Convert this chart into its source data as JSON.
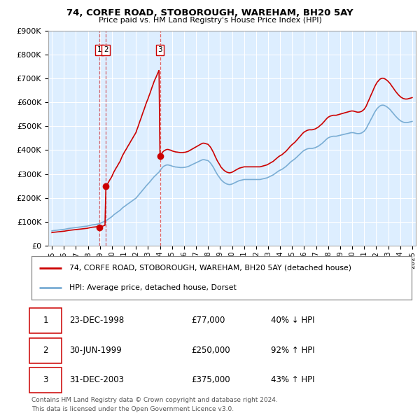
{
  "title1": "74, CORFE ROAD, STOBOROUGH, WAREHAM, BH20 5AY",
  "title2": "Price paid vs. HM Land Registry's House Price Index (HPI)",
  "legend_line1": "74, CORFE ROAD, STOBOROUGH, WAREHAM, BH20 5AY (detached house)",
  "legend_line2": "HPI: Average price, detached house, Dorset",
  "red_line_color": "#cc0000",
  "blue_line_color": "#7aadd4",
  "plot_bg_color": "#ddeeff",
  "purchase_dates": [
    1998.97,
    1999.5,
    2003.997
  ],
  "purchase_prices": [
    77000,
    250000,
    375000
  ],
  "purchase_labels_combined": [
    "1 2",
    "3"
  ],
  "purchase_label_dates": [
    1999.05,
    2004.0
  ],
  "footer1": "Contains HM Land Registry data © Crown copyright and database right 2024.",
  "footer2": "This data is licensed under the Open Government Licence v3.0.",
  "table_rows": [
    {
      "num": "1",
      "date": "23-DEC-1998",
      "price": "£77,000",
      "hpi": "40% ↓ HPI"
    },
    {
      "num": "2",
      "date": "30-JUN-1999",
      "price": "£250,000",
      "hpi": "92% ↑ HPI"
    },
    {
      "num": "3",
      "date": "31-DEC-2003",
      "price": "£375,000",
      "hpi": "43% ↑ HPI"
    }
  ],
  "ylim": [
    0,
    900000
  ],
  "xlim_start": 1994.7,
  "xlim_end": 2025.3,
  "hpi_x": [
    1995.0,
    1995.08,
    1995.17,
    1995.25,
    1995.33,
    1995.42,
    1995.5,
    1995.58,
    1995.67,
    1995.75,
    1995.83,
    1995.92,
    1996.0,
    1996.08,
    1996.17,
    1996.25,
    1996.33,
    1996.42,
    1996.5,
    1996.58,
    1996.67,
    1996.75,
    1996.83,
    1996.92,
    1997.0,
    1997.08,
    1997.17,
    1997.25,
    1997.33,
    1997.42,
    1997.5,
    1997.58,
    1997.67,
    1997.75,
    1997.83,
    1997.92,
    1998.0,
    1998.08,
    1998.17,
    1998.25,
    1998.33,
    1998.42,
    1998.5,
    1998.58,
    1998.67,
    1998.75,
    1998.83,
    1998.92,
    1999.0,
    1999.08,
    1999.17,
    1999.25,
    1999.33,
    1999.42,
    1999.5,
    1999.58,
    1999.67,
    1999.75,
    1999.83,
    1999.92,
    2000.0,
    2000.08,
    2000.17,
    2000.25,
    2000.33,
    2000.42,
    2000.5,
    2000.58,
    2000.67,
    2000.75,
    2000.83,
    2000.92,
    2001.0,
    2001.08,
    2001.17,
    2001.25,
    2001.33,
    2001.42,
    2001.5,
    2001.58,
    2001.67,
    2001.75,
    2001.83,
    2001.92,
    2002.0,
    2002.08,
    2002.17,
    2002.25,
    2002.33,
    2002.42,
    2002.5,
    2002.58,
    2002.67,
    2002.75,
    2002.83,
    2002.92,
    2003.0,
    2003.08,
    2003.17,
    2003.25,
    2003.33,
    2003.42,
    2003.5,
    2003.58,
    2003.67,
    2003.75,
    2003.83,
    2003.92,
    2004.0,
    2004.08,
    2004.17,
    2004.25,
    2004.33,
    2004.42,
    2004.5,
    2004.58,
    2004.67,
    2004.75,
    2004.83,
    2004.92,
    2005.0,
    2005.08,
    2005.17,
    2005.25,
    2005.33,
    2005.42,
    2005.5,
    2005.58,
    2005.67,
    2005.75,
    2005.83,
    2005.92,
    2006.0,
    2006.08,
    2006.17,
    2006.25,
    2006.33,
    2006.42,
    2006.5,
    2006.58,
    2006.67,
    2006.75,
    2006.83,
    2006.92,
    2007.0,
    2007.08,
    2007.17,
    2007.25,
    2007.33,
    2007.42,
    2007.5,
    2007.58,
    2007.67,
    2007.75,
    2007.83,
    2007.92,
    2008.0,
    2008.08,
    2008.17,
    2008.25,
    2008.33,
    2008.42,
    2008.5,
    2008.58,
    2008.67,
    2008.75,
    2008.83,
    2008.92,
    2009.0,
    2009.08,
    2009.17,
    2009.25,
    2009.33,
    2009.42,
    2009.5,
    2009.58,
    2009.67,
    2009.75,
    2009.83,
    2009.92,
    2010.0,
    2010.08,
    2010.17,
    2010.25,
    2010.33,
    2010.42,
    2010.5,
    2010.58,
    2010.67,
    2010.75,
    2010.83,
    2010.92,
    2011.0,
    2011.08,
    2011.17,
    2011.25,
    2011.33,
    2011.42,
    2011.5,
    2011.58,
    2011.67,
    2011.75,
    2011.83,
    2011.92,
    2012.0,
    2012.08,
    2012.17,
    2012.25,
    2012.33,
    2012.42,
    2012.5,
    2012.58,
    2012.67,
    2012.75,
    2012.83,
    2012.92,
    2013.0,
    2013.08,
    2013.17,
    2013.25,
    2013.33,
    2013.42,
    2013.5,
    2013.58,
    2013.67,
    2013.75,
    2013.83,
    2013.92,
    2014.0,
    2014.08,
    2014.17,
    2014.25,
    2014.33,
    2014.42,
    2014.5,
    2014.58,
    2014.67,
    2014.75,
    2014.83,
    2014.92,
    2015.0,
    2015.08,
    2015.17,
    2015.25,
    2015.33,
    2015.42,
    2015.5,
    2015.58,
    2015.67,
    2015.75,
    2015.83,
    2015.92,
    2016.0,
    2016.08,
    2016.17,
    2016.25,
    2016.33,
    2016.42,
    2016.5,
    2016.58,
    2016.67,
    2016.75,
    2016.83,
    2016.92,
    2017.0,
    2017.08,
    2017.17,
    2017.25,
    2017.33,
    2017.42,
    2017.5,
    2017.58,
    2017.67,
    2017.75,
    2017.83,
    2017.92,
    2018.0,
    2018.08,
    2018.17,
    2018.25,
    2018.33,
    2018.42,
    2018.5,
    2018.58,
    2018.67,
    2018.75,
    2018.83,
    2018.92,
    2019.0,
    2019.08,
    2019.17,
    2019.25,
    2019.33,
    2019.42,
    2019.5,
    2019.58,
    2019.67,
    2019.75,
    2019.83,
    2019.92,
    2020.0,
    2020.08,
    2020.17,
    2020.25,
    2020.33,
    2020.42,
    2020.5,
    2020.58,
    2020.67,
    2020.75,
    2020.83,
    2020.92,
    2021.0,
    2021.08,
    2021.17,
    2021.25,
    2021.33,
    2021.42,
    2021.5,
    2021.58,
    2021.67,
    2021.75,
    2021.83,
    2021.92,
    2022.0,
    2022.08,
    2022.17,
    2022.25,
    2022.33,
    2022.42,
    2022.5,
    2022.58,
    2022.67,
    2022.75,
    2022.83,
    2022.92,
    2023.0,
    2023.08,
    2023.17,
    2023.25,
    2023.33,
    2023.42,
    2023.5,
    2023.58,
    2023.67,
    2023.75,
    2023.83,
    2023.92,
    2024.0,
    2024.08,
    2024.17,
    2024.25,
    2024.33,
    2024.42,
    2024.5,
    2024.58,
    2024.67,
    2024.75,
    2024.83,
    2024.92,
    2025.0
  ],
  "hpi_y": [
    62000,
    63000,
    63500,
    64000,
    64500,
    65000,
    65500,
    66000,
    66500,
    67000,
    67500,
    68000,
    68500,
    69000,
    70000,
    71000,
    72000,
    72500,
    73000,
    73500,
    74000,
    74500,
    75000,
    75500,
    76000,
    76500,
    77000,
    77500,
    78000,
    78500,
    79000,
    79500,
    80000,
    80500,
    81000,
    82000,
    83000,
    84000,
    85000,
    86000,
    87000,
    87500,
    88000,
    88500,
    89000,
    90000,
    91000,
    92000,
    93000,
    95000,
    97000,
    99000,
    101000,
    103000,
    105000,
    107000,
    110000,
    113000,
    116000,
    119000,
    122000,
    126000,
    130000,
    133000,
    136000,
    139000,
    142000,
    145000,
    148000,
    152000,
    156000,
    160000,
    163000,
    166000,
    169000,
    172000,
    175000,
    178000,
    181000,
    184000,
    187000,
    190000,
    193000,
    196000,
    199000,
    204000,
    209000,
    214000,
    219000,
    224000,
    229000,
    234000,
    239000,
    244000,
    249000,
    254000,
    258000,
    263000,
    268000,
    273000,
    278000,
    283000,
    288000,
    292000,
    296000,
    300000,
    304000,
    308000,
    315000,
    320000,
    325000,
    330000,
    333000,
    335000,
    337000,
    338000,
    338000,
    337000,
    336000,
    335000,
    333000,
    332000,
    331000,
    330000,
    329000,
    329000,
    328000,
    328000,
    327000,
    327000,
    327000,
    327000,
    328000,
    328000,
    329000,
    330000,
    331000,
    333000,
    335000,
    337000,
    339000,
    341000,
    343000,
    345000,
    347000,
    349000,
    351000,
    353000,
    355000,
    357000,
    359000,
    360000,
    360000,
    359000,
    358000,
    357000,
    356000,
    352000,
    348000,
    343000,
    337000,
    330000,
    323000,
    315000,
    307000,
    300000,
    294000,
    288000,
    282000,
    276000,
    272000,
    268000,
    265000,
    262000,
    260000,
    258000,
    257000,
    256000,
    256000,
    257000,
    258000,
    260000,
    262000,
    264000,
    266000,
    268000,
    270000,
    272000,
    273000,
    274000,
    275000,
    276000,
    277000,
    277000,
    277000,
    277000,
    277000,
    277000,
    277000,
    277000,
    277000,
    277000,
    277000,
    277000,
    277000,
    277000,
    277000,
    277000,
    277000,
    278000,
    279000,
    280000,
    281000,
    282000,
    283000,
    284000,
    286000,
    288000,
    290000,
    292000,
    294000,
    296000,
    299000,
    302000,
    305000,
    308000,
    311000,
    314000,
    316000,
    318000,
    320000,
    323000,
    326000,
    329000,
    332000,
    336000,
    340000,
    344000,
    348000,
    352000,
    355000,
    358000,
    361000,
    364000,
    368000,
    372000,
    376000,
    380000,
    384000,
    388000,
    392000,
    396000,
    399000,
    401000,
    403000,
    405000,
    406000,
    407000,
    407000,
    407000,
    407000,
    408000,
    409000,
    410000,
    412000,
    414000,
    416000,
    419000,
    422000,
    425000,
    428000,
    432000,
    436000,
    440000,
    444000,
    448000,
    451000,
    453000,
    455000,
    456000,
    457000,
    458000,
    458000,
    458000,
    458000,
    459000,
    460000,
    461000,
    462000,
    463000,
    464000,
    465000,
    466000,
    467000,
    468000,
    469000,
    470000,
    471000,
    472000,
    473000,
    473000,
    473000,
    472000,
    471000,
    470000,
    469000,
    469000,
    469000,
    470000,
    471000,
    473000,
    476000,
    479000,
    484000,
    490000,
    498000,
    506000,
    514000,
    522000,
    530000,
    538000,
    546000,
    554000,
    562000,
    568000,
    574000,
    578000,
    582000,
    585000,
    587000,
    588000,
    588000,
    587000,
    585000,
    583000,
    580000,
    577000,
    573000,
    569000,
    564000,
    559000,
    554000,
    549000,
    544000,
    539000,
    535000,
    531000,
    527000,
    524000,
    521000,
    519000,
    517000,
    516000,
    515000,
    515000,
    515000,
    516000,
    517000,
    518000,
    519000,
    520000
  ],
  "vline_dates": [
    1998.97,
    1999.5,
    2003.997
  ]
}
